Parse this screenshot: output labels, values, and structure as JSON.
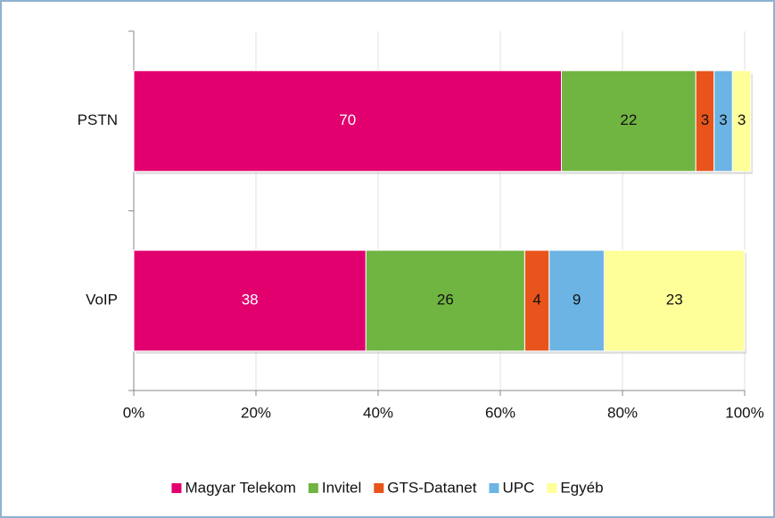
{
  "chart_data": {
    "type": "stacked_barh",
    "categories": [
      "PSTN",
      "VoIP"
    ],
    "series": [
      {
        "name": "Magyar Telekom",
        "color": "#e2006f",
        "label_color": "#ffffff",
        "values": [
          70,
          38
        ]
      },
      {
        "name": "Invitel",
        "color": "#70b441",
        "label_color": "#111111",
        "values": [
          22,
          26
        ]
      },
      {
        "name": "GTS-Datanet",
        "color": "#e8541c",
        "label_color": "#111111",
        "values": [
          3,
          4
        ]
      },
      {
        "name": "UPC",
        "color": "#6cb4e4",
        "label_color": "#111111",
        "values": [
          3,
          9
        ]
      },
      {
        "name": "Egyéb",
        "color": "#ffff99",
        "label_color": "#111111",
        "values": [
          3,
          23
        ]
      }
    ],
    "xlim": [
      0,
      100
    ],
    "xticks": [
      {
        "value": 0,
        "label": "0%"
      },
      {
        "value": 20,
        "label": "20%"
      },
      {
        "value": 40,
        "label": "40%"
      },
      {
        "value": 60,
        "label": "60%"
      },
      {
        "value": 80,
        "label": "80%"
      },
      {
        "value": 100,
        "label": "100%"
      }
    ],
    "grid": true,
    "legend": "bottom"
  }
}
